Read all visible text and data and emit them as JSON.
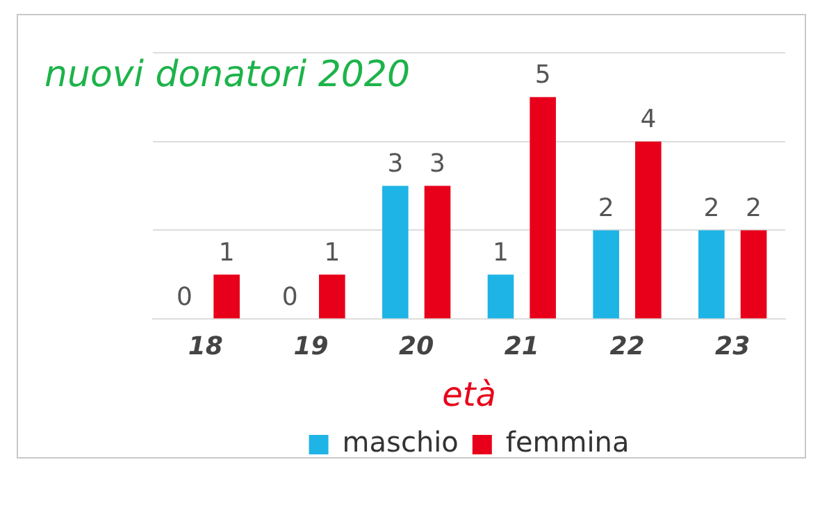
{
  "chart_data": {
    "type": "bar",
    "title": "nuovi donatori 2020",
    "xlabel": "età",
    "categories": [
      "18",
      "19",
      "20",
      "21",
      "22",
      "23"
    ],
    "series": [
      {
        "name": "maschio",
        "color": "#1fb4e6",
        "values": [
          0,
          0,
          3,
          1,
          2,
          2
        ]
      },
      {
        "name": "femmina",
        "color": "#e8001a",
        "values": [
          1,
          1,
          3,
          5,
          4,
          2
        ]
      }
    ],
    "ylim": [
      0,
      6
    ],
    "yticks": [
      {
        "value": 0,
        "label": null
      },
      {
        "value": 2,
        "label": null
      },
      {
        "value": 4,
        "label": null
      },
      {
        "value": 6,
        "label": null
      }
    ],
    "tick_labels": "x",
    "grid": "y",
    "legend": "bottom",
    "data_labels": true
  }
}
